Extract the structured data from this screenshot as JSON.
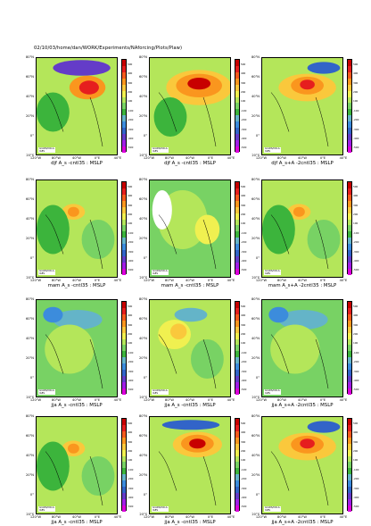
{
  "header_path": "02/10/03/home/dan/WORK/Experiments/NAforcing/Plots/Plaw)",
  "lat_labels": [
    "80°N",
    "60°N",
    "40°N",
    "20°N",
    "0°",
    "20°S"
  ],
  "lon_labels": [
    "120°W",
    "80°W",
    "40°W",
    "0°E",
    "40°E"
  ],
  "stamp_label": "GrADS/COLA-IGES",
  "colorbar_ticks": [
    "500",
    "400",
    "300",
    "200",
    "100",
    "-100",
    "-200",
    "-300",
    "-400",
    "-500"
  ],
  "colorbar_colors": [
    "#c80000",
    "#e61e1e",
    "#f55a1e",
    "#fa961e",
    "#fac83c",
    "#f0f050",
    "#b4e65a",
    "#78d264",
    "#3cb43c",
    "#64b4c8",
    "#3c8cdc",
    "#3264c8",
    "#643cc8",
    "#a01ee6",
    "#dc00dc"
  ],
  "chart_data": [
    {
      "type": "heatmap",
      "caption": "djf A_s -cntl35 : MSLP",
      "panel": 1,
      "pattern": "dipole-strong"
    },
    {
      "type": "heatmap",
      "caption": "djf A_s -cntl35 : MSLP",
      "panel": 2,
      "pattern": "broad-positive"
    },
    {
      "type": "heatmap",
      "caption": "djf A_s+A -2cntl35 : MSLP",
      "panel": 3,
      "pattern": "positive-center"
    },
    {
      "type": "heatmap",
      "caption": "mam A_s -cntl35 : MSLP",
      "panel": 4,
      "pattern": "positive-small"
    },
    {
      "type": "heatmap",
      "caption": "mam A_s -cntl35 : MSLP",
      "panel": 5,
      "pattern": "weak"
    },
    {
      "type": "heatmap",
      "caption": "mam A_s+A -2cntl35 : MSLP",
      "panel": 6,
      "pattern": "positive-small"
    },
    {
      "type": "heatmap",
      "caption": "jja A_s -cntl35 : MSLP",
      "panel": 7,
      "pattern": "negative-weak"
    },
    {
      "type": "heatmap",
      "caption": "jja A_s -cntl35 : MSLP",
      "panel": 8,
      "pattern": "weak-positive"
    },
    {
      "type": "heatmap",
      "caption": "jja A_s+A -2cntl35 : MSLP",
      "panel": 9,
      "pattern": "negative-weak"
    },
    {
      "type": "heatmap",
      "caption": "jja A_s -cntl35 : MSLP",
      "panel": 10,
      "pattern": "positive-small"
    },
    {
      "type": "heatmap",
      "caption": "jja A_s -cntl35 : MSLP",
      "panel": 11,
      "pattern": "positive-strong"
    },
    {
      "type": "heatmap",
      "caption": "jja A_s+A -2cntl35 : MSLP",
      "panel": 12,
      "pattern": "positive-center"
    }
  ]
}
